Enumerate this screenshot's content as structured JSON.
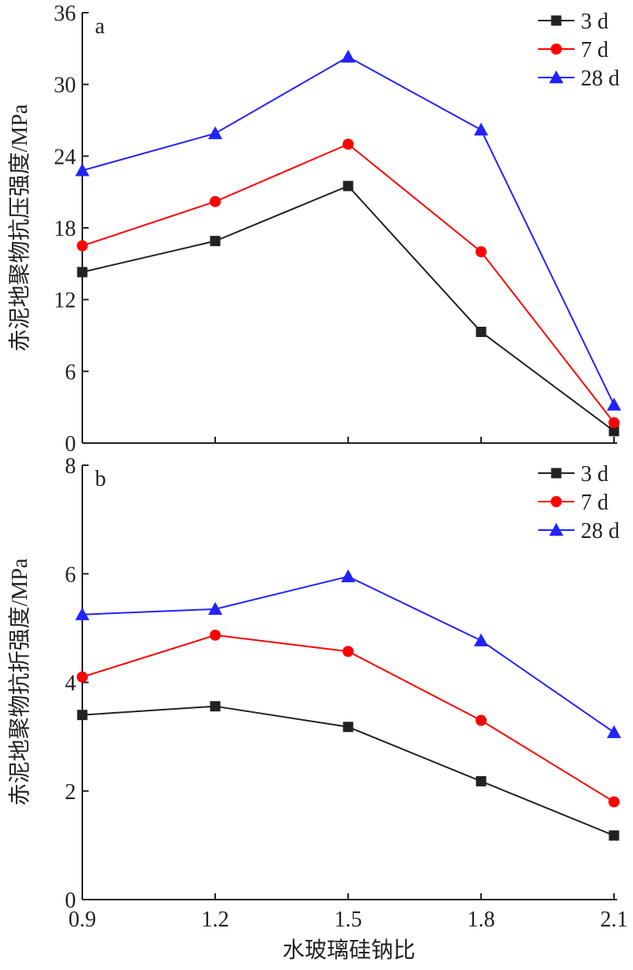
{
  "chart_data": [
    {
      "type": "line",
      "panel_label": "a",
      "title": "",
      "xlabel": "水玻璃硅钠比",
      "ylabel": "赤泥地聚物抗压强度/MPa",
      "x": [
        0.9,
        1.2,
        1.5,
        1.8,
        2.1
      ],
      "x_tick_labels": [
        "0.9",
        "1.2",
        "1.5",
        "1.8",
        "2.1"
      ],
      "ylim": [
        0,
        36
      ],
      "y_ticks": [
        0,
        6,
        12,
        18,
        24,
        30,
        36
      ],
      "y_tick_labels": [
        "0",
        "6",
        "12",
        "18",
        "24",
        "30",
        "36"
      ],
      "legend_position": "top-right",
      "grid": false,
      "series": [
        {
          "name": "3 d",
          "color": "#222222",
          "marker": "square",
          "values": [
            14.3,
            16.9,
            21.5,
            9.3,
            1.0
          ]
        },
        {
          "name": "7 d",
          "color": "#ff0000",
          "marker": "circle",
          "values": [
            16.5,
            20.2,
            25.0,
            16.0,
            1.7
          ]
        },
        {
          "name": "28 d",
          "color": "#2222ff",
          "marker": "triangle",
          "values": [
            22.8,
            25.9,
            32.3,
            26.2,
            3.2
          ]
        }
      ]
    },
    {
      "type": "line",
      "panel_label": "b",
      "title": "",
      "xlabel": "水玻璃硅钠比",
      "ylabel": "赤泥地聚物抗折强度/MPa",
      "x": [
        0.9,
        1.2,
        1.5,
        1.8,
        2.1
      ],
      "x_tick_labels": [
        "0.9",
        "1.2",
        "1.5",
        "1.8",
        "2.1"
      ],
      "ylim": [
        0,
        8
      ],
      "y_ticks": [
        0,
        2,
        4,
        6,
        8
      ],
      "y_tick_labels": [
        "0",
        "2",
        "4",
        "6",
        "8"
      ],
      "legend_position": "top-right",
      "grid": false,
      "series": [
        {
          "name": "3 d",
          "color": "#222222",
          "marker": "square",
          "values": [
            3.4,
            3.56,
            3.18,
            2.18,
            1.18
          ]
        },
        {
          "name": "7 d",
          "color": "#ff0000",
          "marker": "circle",
          "values": [
            4.1,
            4.87,
            4.57,
            3.3,
            1.8
          ]
        },
        {
          "name": "28 d",
          "color": "#2222ff",
          "marker": "triangle",
          "values": [
            5.25,
            5.35,
            5.95,
            4.77,
            3.08
          ]
        }
      ]
    }
  ]
}
